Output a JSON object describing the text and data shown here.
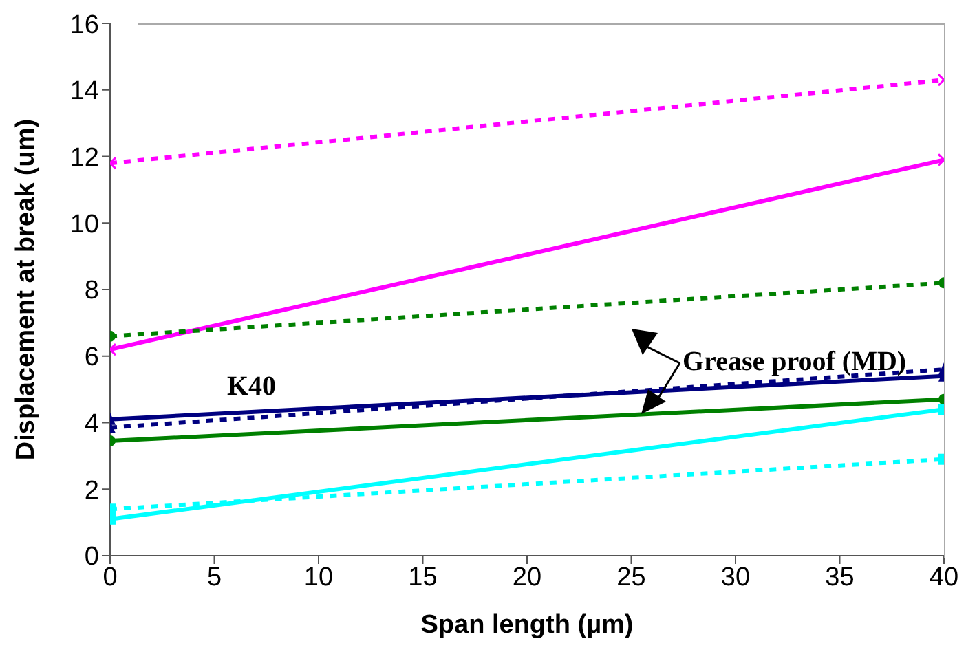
{
  "chart_data": {
    "type": "line",
    "xlabel": "Span length (µm)",
    "ylabel": "Displacement at break  (um)",
    "x": [
      0,
      40
    ],
    "xlim": [
      0,
      40
    ],
    "xticks": [
      0,
      5,
      10,
      15,
      20,
      25,
      30,
      35,
      40
    ],
    "ylim": [
      0,
      16
    ],
    "yticks": [
      0,
      2,
      4,
      6,
      8,
      10,
      12,
      14,
      16
    ],
    "annotations": [
      "K40",
      {
        "text": "Grease proof (MD)",
        "x": 25,
        "y": 4.3
      }
    ],
    "series": [
      {
        "color": "#ff00ff",
        "values": [
          11.8,
          14.3
        ],
        "marker": "cross",
        "line_style": "dashed"
      },
      {
        "color": "#ff00ff",
        "values": [
          6.2,
          11.9
        ],
        "marker": "cross",
        "line_style": "solid"
      },
      {
        "color": "#008000",
        "values": [
          6.6,
          8.2
        ],
        "marker": "circle",
        "line_style": "dashed"
      },
      {
        "color": "#008000",
        "values": [
          3.45,
          4.7
        ],
        "marker": "circle",
        "line_style": "solid"
      },
      {
        "color": "#000080",
        "values": [
          4.1,
          5.4
        ],
        "marker": "triangle",
        "line_style": "solid"
      },
      {
        "color": "#000080",
        "values": [
          3.85,
          5.6
        ],
        "marker": "triangle",
        "line_style": "dashed"
      },
      {
        "color": "#00ffff",
        "values": [
          1.1,
          4.4
        ],
        "marker": "square",
        "line_style": "solid"
      },
      {
        "color": "#00ffff",
        "values": [
          1.4,
          2.9
        ],
        "marker": "square",
        "line_style": "dashed"
      }
    ]
  }
}
